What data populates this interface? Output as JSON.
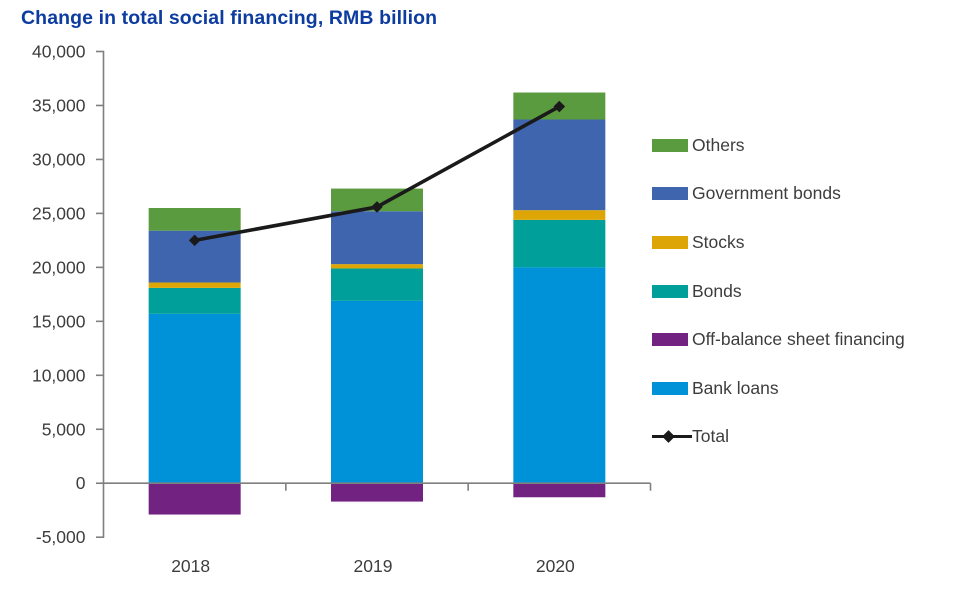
{
  "title": "Change in total social financing, RMB billion",
  "title_color": "#0d3ca0",
  "chart_data": {
    "type": "bar",
    "subtype": "stacked-bar-with-line",
    "title": "Change in total social financing, RMB billion",
    "xlabel": "",
    "ylabel": "RMB billion",
    "categories": [
      "2018",
      "2019",
      "2020"
    ],
    "series": [
      {
        "name": "Bank loans",
        "color": "#0092d8",
        "values": [
          15700,
          16900,
          20000
        ]
      },
      {
        "name": "Bonds",
        "color": "#009f9a",
        "values": [
          2400,
          3000,
          4400
        ]
      },
      {
        "name": "Stocks",
        "color": "#dda606",
        "values": [
          500,
          400,
          900
        ]
      },
      {
        "name": "Government bonds",
        "color": "#4065af",
        "values": [
          4800,
          4900,
          8400
        ]
      },
      {
        "name": "Others",
        "color": "#5b9b40",
        "values": [
          2100,
          2100,
          2500
        ]
      },
      {
        "name": "Off-balance sheet financing",
        "color": "#722382",
        "values": [
          -2900,
          -1700,
          -1300
        ]
      }
    ],
    "line_series": {
      "name": "Total",
      "color": "#1a1a1a",
      "values": [
        22500,
        25600,
        34900
      ]
    },
    "ylim": [
      -5000,
      40000
    ],
    "ytick_step": 5000,
    "ytick_labels": [
      "40,000",
      "35,000",
      "30,000",
      "25,000",
      "20,000",
      "15,000",
      "10,000",
      "5,000",
      "0",
      "-5,000"
    ],
    "grid": false,
    "legend_position": "right",
    "legend": [
      {
        "label": "Others",
        "color": "#5b9b40",
        "marker": "swatch"
      },
      {
        "label": "Government bonds",
        "color": "#4065af",
        "marker": "swatch"
      },
      {
        "label": "Stocks",
        "color": "#dda606",
        "marker": "swatch"
      },
      {
        "label": "Bonds",
        "color": "#009f9a",
        "marker": "swatch"
      },
      {
        "label": "Off-balance sheet financing",
        "color": "#722382",
        "marker": "swatch"
      },
      {
        "label": "Bank loans",
        "color": "#0092d8",
        "marker": "swatch"
      },
      {
        "label": "Total",
        "color": "#1a1a1a",
        "marker": "line-diamond"
      }
    ],
    "axis_color": "#7f7f7f",
    "tick_label_color": "#3d3d3d"
  }
}
